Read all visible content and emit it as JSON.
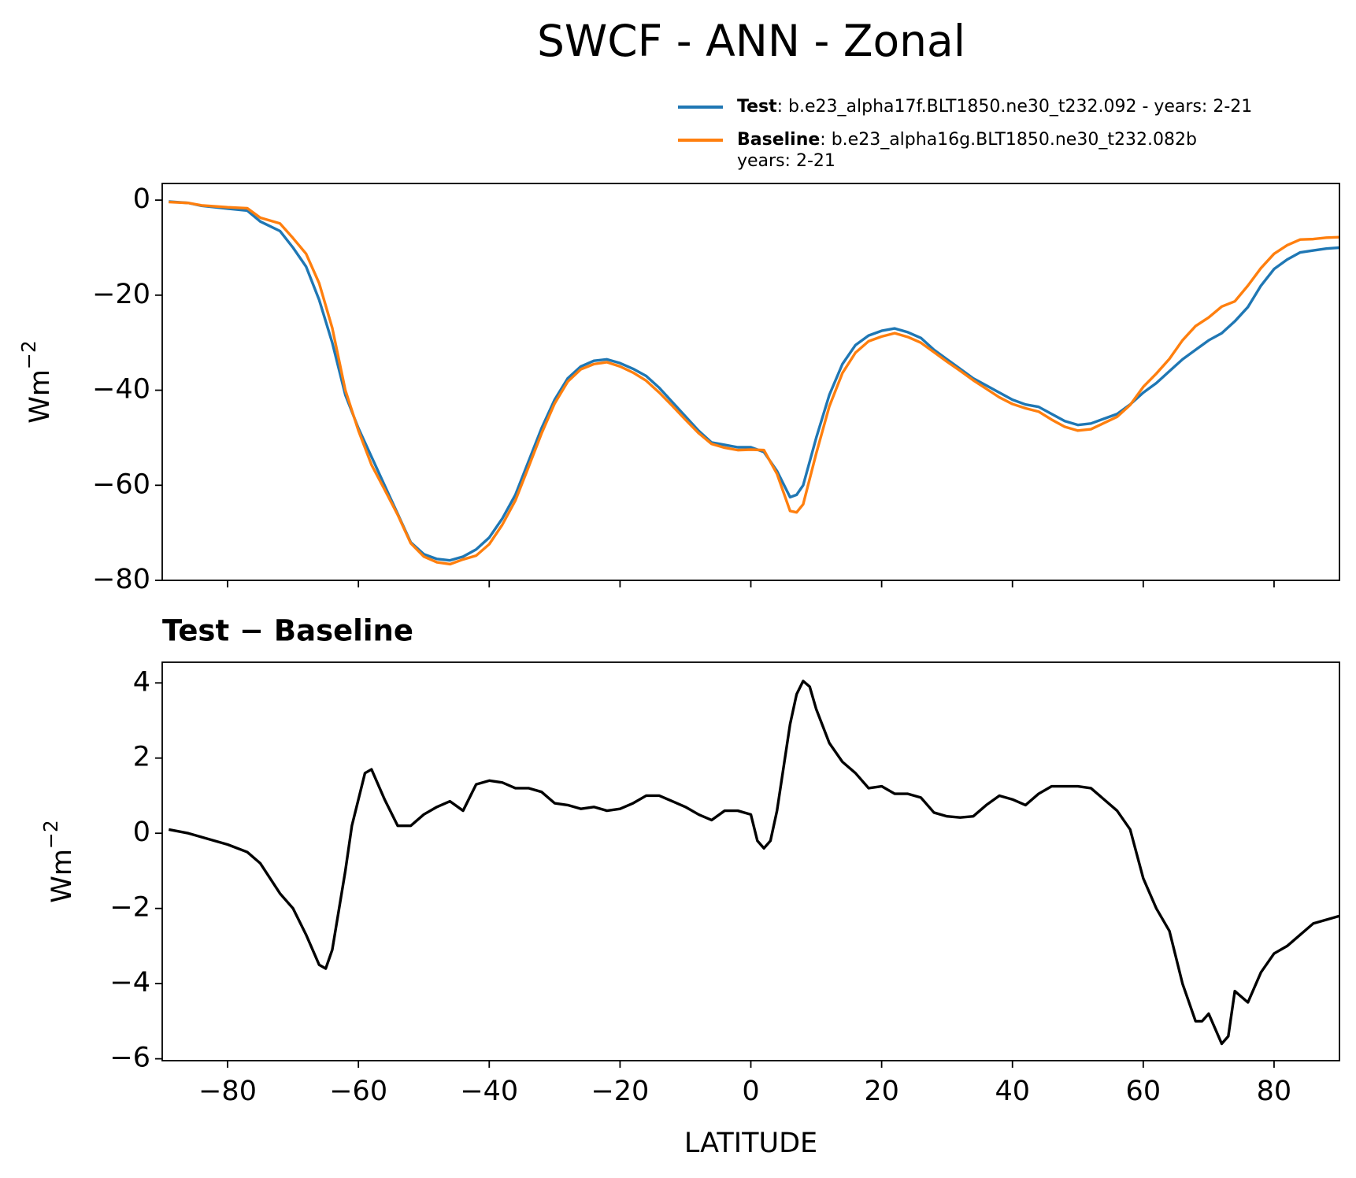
{
  "chart_data": [
    {
      "type": "line",
      "title": "SWCF - ANN - Zonal",
      "ylabel": {
        "base": "Wm",
        "sup": "−2"
      },
      "x": [
        -89,
        -86,
        -84,
        -80,
        -77,
        -75,
        -72,
        -70,
        -68,
        -66,
        -64,
        -62,
        -60,
        -58,
        -56,
        -54,
        -52,
        -50,
        -48,
        -46,
        -44,
        -42,
        -40,
        -38,
        -36,
        -34,
        -32,
        -30,
        -28,
        -26,
        -24,
        -22,
        -20,
        -18,
        -16,
        -14,
        -12,
        -10,
        -8,
        -6,
        -4,
        -2,
        0,
        2,
        4,
        6,
        7,
        8,
        10,
        12,
        14,
        16,
        18,
        20,
        22,
        24,
        26,
        28,
        30,
        32,
        34,
        36,
        38,
        40,
        42,
        44,
        46,
        48,
        50,
        52,
        54,
        56,
        58,
        60,
        62,
        64,
        66,
        68,
        70,
        72,
        74,
        76,
        78,
        80,
        82,
        84,
        86,
        88,
        90
      ],
      "series": [
        {
          "name": "Test",
          "description": [
            ": b.e23_alpha17f.BLT1850.ne30_t232.092 - years: 2-21"
          ],
          "color": "#1f77b4",
          "values": [
            -0.3,
            -0.6,
            -1.2,
            -1.8,
            -2.2,
            -4.5,
            -6.5,
            -10,
            -14,
            -21,
            -30,
            -41,
            -48,
            -54,
            -60,
            -66,
            -72,
            -74.5,
            -75.5,
            -75.8,
            -75,
            -73.5,
            -71,
            -67,
            -62,
            -55,
            -48,
            -42,
            -37.5,
            -35,
            -33.8,
            -33.5,
            -34.3,
            -35.5,
            -37,
            -39.5,
            -42.5,
            -45.5,
            -48.5,
            -51,
            -51.5,
            -52,
            -52,
            -53,
            -57,
            -62.5,
            -62,
            -60,
            -50,
            -41,
            -34.5,
            -30.5,
            -28.5,
            -27.5,
            -27,
            -27.8,
            -29,
            -31.5,
            -33.5,
            -35.5,
            -37.5,
            -39,
            -40.5,
            -42,
            -43,
            -43.5,
            -45,
            -46.5,
            -47.3,
            -47,
            -46,
            -45,
            -43,
            -40.5,
            -38.5,
            -36,
            -33.5,
            -31.5,
            -29.5,
            -28,
            -25.5,
            -22.5,
            -18,
            -14.5,
            -12.5,
            -11,
            -10.6,
            -10.2,
            -10
          ]
        },
        {
          "name": "Baseline",
          "description": [
            ": b.e23_alpha16g.BLT1850.ne30_t232.082b",
            "years: 2-21"
          ],
          "color": "#ff7f0e",
          "values": [
            -0.4,
            -0.6,
            -1.1,
            -1.5,
            -1.7,
            -3.7,
            -4.9,
            -8,
            -11.3,
            -17.5,
            -26.9,
            -40,
            -48.5,
            -55.7,
            -60.9,
            -66.2,
            -72.2,
            -75,
            -76.2,
            -76.6,
            -75.6,
            -74.8,
            -72.4,
            -68.3,
            -63.2,
            -56.2,
            -49.1,
            -42.8,
            -38.2,
            -35.6,
            -34.5,
            -34.1,
            -35,
            -36.3,
            -38,
            -40.5,
            -43.3,
            -46.2,
            -49,
            -51.3,
            -52.1,
            -52.6,
            -52.5,
            -52.6,
            -57.6,
            -65.4,
            -65.7,
            -64,
            -53.3,
            -43.4,
            -36.4,
            -32.1,
            -29.7,
            -28.7,
            -28,
            -28.8,
            -30,
            -32,
            -34,
            -35.9,
            -37.9,
            -39.7,
            -41.5,
            -42.9,
            -43.8,
            -44.5,
            -46.2,
            -47.7,
            -48.5,
            -48.2,
            -46.9,
            -45.6,
            -43.1,
            -39.3,
            -36.5,
            -33.4,
            -29.5,
            -26.5,
            -24.7,
            -22.4,
            -21.3,
            -18,
            -14.3,
            -11.3,
            -9.5,
            -8.3,
            -8.2,
            -7.9,
            -7.8
          ]
        }
      ],
      "xlim": [
        -90,
        90
      ],
      "xticks": [
        -80,
        -60,
        -40,
        -20,
        0,
        20,
        40,
        60,
        80
      ],
      "ylim": [
        -80,
        3.5
      ],
      "yticks": [
        0,
        {
          "value": -20,
          "label": "−20"
        },
        {
          "value": -40,
          "label": "−40"
        },
        {
          "value": -60,
          "label": "−60"
        },
        {
          "value": -80,
          "label": "−80"
        }
      ],
      "grid": false
    },
    {
      "type": "line",
      "title": "Test − Baseline",
      "xlabel": "LATITUDE",
      "ylabel": {
        "base": "Wm",
        "sup": "−2"
      },
      "x": [
        -89,
        -86,
        -84,
        -80,
        -77,
        -75,
        -72,
        -70,
        -68,
        -66,
        -65,
        -64,
        -62,
        -61,
        -59,
        -58,
        -56,
        -54,
        -52,
        -50,
        -48,
        -46,
        -44,
        -42,
        -40,
        -38,
        -36,
        -34,
        -32,
        -30,
        -28,
        -26,
        -24,
        -22,
        -20,
        -18,
        -16,
        -14,
        -12,
        -10,
        -8,
        -6,
        -4,
        -2,
        0,
        1,
        2,
        3,
        4,
        6,
        7,
        8,
        9,
        10,
        12,
        14,
        16,
        18,
        20,
        22,
        24,
        26,
        28,
        30,
        32,
        34,
        36,
        38,
        40,
        42,
        44,
        46,
        48,
        50,
        52,
        54,
        56,
        58,
        60,
        62,
        64,
        66,
        68,
        69,
        70,
        72,
        73,
        74,
        76,
        78,
        80,
        82,
        84,
        86,
        88,
        90
      ],
      "series": [
        {
          "name": "Test − Baseline",
          "color": "#000000",
          "values": [
            0.1,
            0,
            -0.1,
            -0.3,
            -0.5,
            -0.8,
            -1.6,
            -2,
            -2.7,
            -3.5,
            -3.6,
            -3.1,
            -1,
            0.2,
            1.6,
            1.7,
            0.9,
            0.2,
            0.2,
            0.5,
            0.7,
            0.85,
            0.6,
            1.3,
            1.4,
            1.35,
            1.2,
            1.2,
            1.1,
            0.8,
            0.75,
            0.65,
            0.7,
            0.6,
            0.65,
            0.8,
            1.0,
            1.0,
            0.85,
            0.7,
            0.5,
            0.35,
            0.6,
            0.6,
            0.5,
            -0.2,
            -0.4,
            -0.2,
            0.6,
            2.9,
            3.7,
            4.05,
            3.9,
            3.3,
            2.4,
            1.9,
            1.6,
            1.2,
            1.25,
            1.05,
            1.05,
            0.95,
            0.55,
            0.45,
            0.42,
            0.45,
            0.75,
            1.0,
            0.9,
            0.75,
            1.05,
            1.25,
            1.25,
            1.25,
            1.2,
            0.9,
            0.6,
            0.1,
            -1.2,
            -2,
            -2.6,
            -4,
            -5,
            -5,
            -4.8,
            -5.6,
            -5.4,
            -4.2,
            -4.5,
            -3.7,
            -3.2,
            -3,
            -2.7,
            -2.4,
            -2.3,
            -2.2
          ]
        }
      ],
      "xlim": [
        -90,
        90
      ],
      "xticks": [
        {
          "value": -80,
          "label": "−80"
        },
        {
          "value": -60,
          "label": "−60"
        },
        {
          "value": -40,
          "label": "−40"
        },
        {
          "value": -20,
          "label": "−20"
        },
        0,
        20,
        40,
        60,
        80
      ],
      "ylim": [
        -6.05,
        4.55
      ],
      "yticks": [
        4,
        2,
        0,
        {
          "value": -2,
          "label": "−2"
        },
        {
          "value": -4,
          "label": "−4"
        },
        {
          "value": -6,
          "label": "−6"
        }
      ],
      "grid": false
    }
  ]
}
